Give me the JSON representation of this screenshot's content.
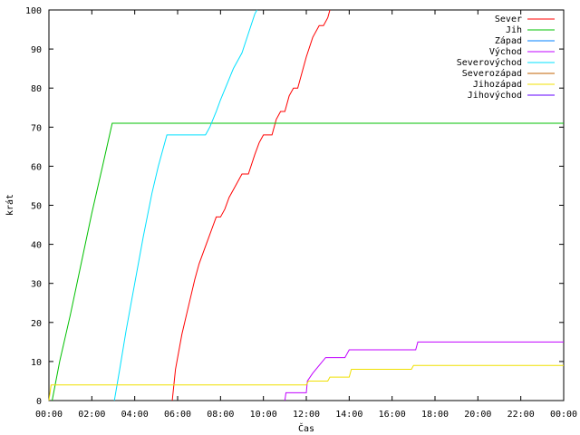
{
  "chart_data": {
    "type": "line",
    "xlabel": "Čas",
    "ylabel": "krát",
    "xlim": [
      0,
      24
    ],
    "ylim": [
      0,
      100
    ],
    "x_ticks": [
      {
        "value": 0,
        "label": "00:00"
      },
      {
        "value": 2,
        "label": "02:00"
      },
      {
        "value": 4,
        "label": "04:00"
      },
      {
        "value": 6,
        "label": "06:00"
      },
      {
        "value": 8,
        "label": "08:00"
      },
      {
        "value": 10,
        "label": "10:00"
      },
      {
        "value": 12,
        "label": "12:00"
      },
      {
        "value": 14,
        "label": "14:00"
      },
      {
        "value": 16,
        "label": "16:00"
      },
      {
        "value": 18,
        "label": "18:00"
      },
      {
        "value": 20,
        "label": "20:00"
      },
      {
        "value": 22,
        "label": "22:00"
      },
      {
        "value": 24,
        "label": "00:00"
      }
    ],
    "y_ticks": [
      0,
      10,
      20,
      30,
      40,
      50,
      60,
      70,
      80,
      90,
      100
    ],
    "grid": false,
    "legend_position": "top-right",
    "series": [
      {
        "name": "Sever",
        "color": "#ff0000",
        "points": [
          [
            5.75,
            0
          ],
          [
            5.9,
            8
          ],
          [
            6.2,
            17
          ],
          [
            6.5,
            24
          ],
          [
            6.8,
            31
          ],
          [
            7.0,
            35
          ],
          [
            7.2,
            38
          ],
          [
            7.4,
            41
          ],
          [
            7.6,
            44
          ],
          [
            7.8,
            47
          ],
          [
            8.0,
            47
          ],
          [
            8.2,
            49
          ],
          [
            8.4,
            52
          ],
          [
            8.7,
            55
          ],
          [
            9.0,
            58
          ],
          [
            9.3,
            58
          ],
          [
            9.6,
            63
          ],
          [
            9.8,
            66
          ],
          [
            10.0,
            68
          ],
          [
            10.4,
            68
          ],
          [
            10.6,
            72
          ],
          [
            10.8,
            74
          ],
          [
            11.0,
            74
          ],
          [
            11.2,
            78
          ],
          [
            11.4,
            80
          ],
          [
            11.6,
            80
          ],
          [
            11.8,
            84
          ],
          [
            12.0,
            88
          ],
          [
            12.3,
            93
          ],
          [
            12.6,
            96
          ],
          [
            12.8,
            96
          ],
          [
            13.0,
            98
          ],
          [
            13.1,
            100
          ]
        ]
      },
      {
        "name": "Jih",
        "color": "#00c000",
        "points": [
          [
            0.15,
            0
          ],
          [
            0.5,
            10
          ],
          [
            1.0,
            22
          ],
          [
            1.5,
            35
          ],
          [
            2.0,
            48
          ],
          [
            2.5,
            60
          ],
          [
            2.95,
            71
          ],
          [
            24,
            71
          ]
        ]
      },
      {
        "name": "Západ",
        "color": "#0080ff",
        "points": []
      },
      {
        "name": "Východ",
        "color": "#c000ff",
        "points": [
          [
            11.0,
            0
          ],
          [
            11.05,
            2
          ],
          [
            11.7,
            2
          ],
          [
            12.0,
            2
          ],
          [
            12.05,
            5
          ],
          [
            12.3,
            7
          ],
          [
            12.6,
            9
          ],
          [
            12.9,
            11
          ],
          [
            13.3,
            11
          ],
          [
            13.8,
            11
          ],
          [
            14.0,
            13
          ],
          [
            17.1,
            13
          ],
          [
            17.2,
            15
          ],
          [
            24,
            15
          ]
        ]
      },
      {
        "name": "Severovýchod",
        "color": "#00e0ff",
        "points": [
          [
            3.05,
            0
          ],
          [
            3.3,
            8
          ],
          [
            3.6,
            18
          ],
          [
            4.0,
            30
          ],
          [
            4.4,
            42
          ],
          [
            4.8,
            53
          ],
          [
            5.1,
            60
          ],
          [
            5.5,
            68
          ],
          [
            7.3,
            68
          ],
          [
            7.5,
            70
          ],
          [
            7.8,
            74
          ],
          [
            8.0,
            77
          ],
          [
            8.3,
            81
          ],
          [
            8.6,
            85
          ],
          [
            9.0,
            89
          ],
          [
            9.3,
            94
          ],
          [
            9.6,
            99
          ],
          [
            9.7,
            100
          ]
        ]
      },
      {
        "name": "Severozápad",
        "color": "#c06000",
        "points": []
      },
      {
        "name": "Jihozápad",
        "color": "#f0e000",
        "points": [
          [
            0.0,
            0
          ],
          [
            0.1,
            4
          ],
          [
            11.9,
            4
          ],
          [
            12.0,
            4
          ],
          [
            12.1,
            5
          ],
          [
            13.0,
            5
          ],
          [
            13.1,
            6
          ],
          [
            14.0,
            6
          ],
          [
            14.1,
            8
          ],
          [
            16.9,
            8
          ],
          [
            17.0,
            9
          ],
          [
            24,
            9
          ]
        ]
      },
      {
        "name": "Jihovýchod",
        "color": "#6000ff",
        "points": []
      }
    ]
  }
}
